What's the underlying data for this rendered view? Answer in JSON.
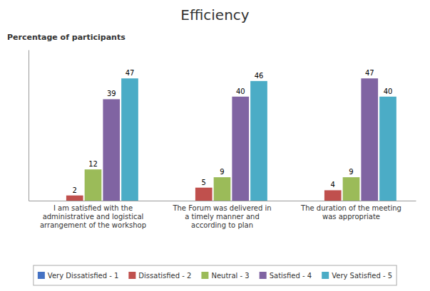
{
  "chart_data": {
    "type": "bar",
    "title": "Efficiency",
    "ylabel": "Percentage of participants",
    "categories": [
      "I am satisfied with the\nadministrative and logistical\narrangement of the workshop",
      "The Forum was delivered in\na timely manner and\naccording to plan",
      "The duration of the meeting\nwas appropriate"
    ],
    "series": [
      {
        "name": "Very Dissatisfied - 1",
        "color": "#4472C4",
        "values": [
          0,
          0,
          0
        ],
        "value_labels": [
          null,
          null,
          null
        ]
      },
      {
        "name": "Dissatisfied - 2",
        "color": "#C0504D",
        "values": [
          2,
          5,
          4
        ]
      },
      {
        "name": "Neutral - 3",
        "color": "#9BBB59",
        "values": [
          12,
          9,
          9
        ]
      },
      {
        "name": "Satisfied - 4",
        "color": "#8064A2",
        "values": [
          39,
          40,
          47
        ]
      },
      {
        "name": "Very Satisfied - 5",
        "color": "#4BACC6",
        "values": [
          47,
          46,
          40
        ]
      }
    ],
    "ylim": [
      0,
      58
    ],
    "grid": false,
    "legend": "bottom",
    "data_labels": true,
    "tick_labels": "x"
  }
}
